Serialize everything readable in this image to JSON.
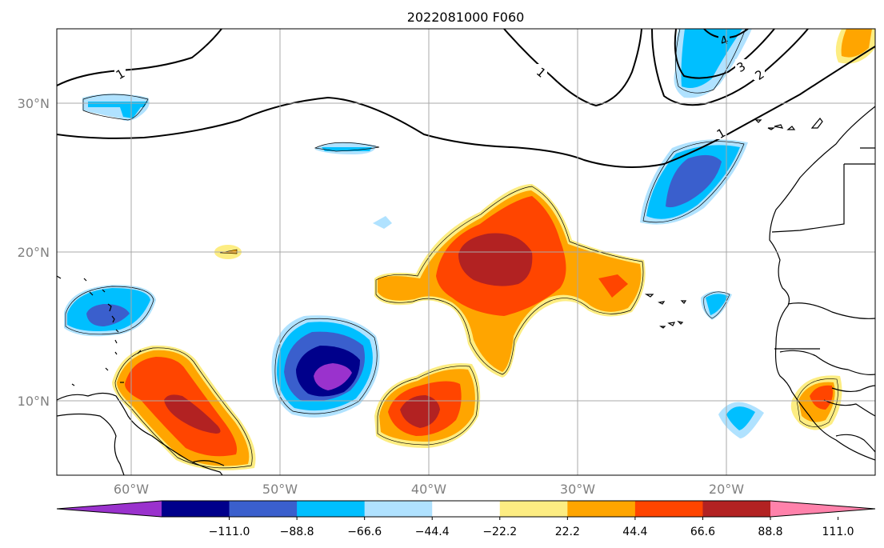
{
  "title": "2022081000 F060",
  "x_ticks": [
    "60°W",
    "50°W",
    "40°W",
    "30°W",
    "20°W"
  ],
  "y_ticks": [
    "30°N",
    "20°N",
    "10°N"
  ],
  "colorbar": {
    "colors": [
      "#9a32cd",
      "#00008b",
      "#3a5fcd",
      "#00bfff",
      "#b0e2ff",
      "#ffffff",
      "#fded82",
      "#ffa500",
      "#ff4500",
      "#b22222",
      "#ff82ab"
    ],
    "tick_labels": [
      "−111.0",
      "−88.8",
      "−66.6",
      "−44.4",
      "−22.2",
      "22.2",
      "44.4",
      "66.6",
      "88.8",
      "111.0"
    ],
    "extend": "both"
  },
  "contour_labels": [
    "1",
    "1",
    "1",
    "2",
    "3",
    "4"
  ],
  "features": {
    "fill_field": "shaded anomaly contours",
    "line_field": "solid black contours labeled 1–4",
    "basemap": "coastlines and country borders",
    "grid": true
  }
}
